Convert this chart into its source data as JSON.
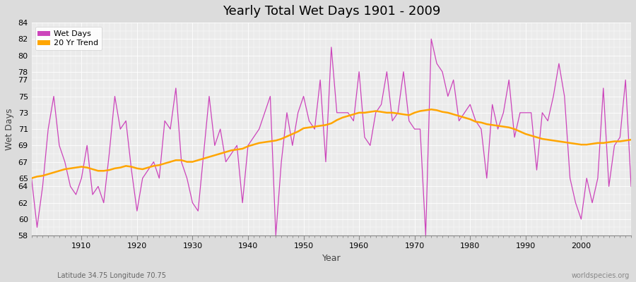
{
  "title": "Yearly Total Wet Days 1901 - 2009",
  "xlabel": "Year",
  "ylabel": "Wet Days",
  "lat_lon_label": "Latitude 34.75 Longitude 70.75",
  "watermark": "worldspecies.org",
  "ylim": [
    58,
    84
  ],
  "yticks": [
    58,
    60,
    62,
    64,
    65,
    67,
    69,
    71,
    73,
    75,
    77,
    78,
    80,
    82,
    84
  ],
  "xlim": [
    1901,
    2009
  ],
  "wet_days_color": "#CC44BB",
  "trend_color": "#FFA500",
  "bg_color": "#DCDCDC",
  "plot_bg_color": "#EBEBEB",
  "grid_color": "#FFFFFF",
  "years": [
    1901,
    1902,
    1903,
    1904,
    1905,
    1906,
    1907,
    1908,
    1909,
    1910,
    1911,
    1912,
    1913,
    1914,
    1915,
    1916,
    1917,
    1918,
    1919,
    1920,
    1921,
    1922,
    1923,
    1924,
    1925,
    1926,
    1927,
    1928,
    1929,
    1930,
    1931,
    1932,
    1933,
    1934,
    1935,
    1936,
    1937,
    1938,
    1939,
    1940,
    1941,
    1942,
    1943,
    1944,
    1945,
    1946,
    1947,
    1948,
    1949,
    1950,
    1951,
    1952,
    1953,
    1954,
    1955,
    1956,
    1957,
    1958,
    1959,
    1960,
    1961,
    1962,
    1963,
    1964,
    1965,
    1966,
    1967,
    1968,
    1969,
    1970,
    1971,
    1972,
    1973,
    1974,
    1975,
    1976,
    1977,
    1978,
    1979,
    1980,
    1981,
    1982,
    1983,
    1984,
    1985,
    1986,
    1987,
    1988,
    1989,
    1990,
    1991,
    1992,
    1993,
    1994,
    1995,
    1996,
    1997,
    1998,
    1999,
    2000,
    2001,
    2002,
    2003,
    2004,
    2005,
    2006,
    2007,
    2008,
    2009
  ],
  "wet_days": [
    65,
    59,
    64,
    71,
    75,
    69,
    67,
    64,
    63,
    65,
    69,
    63,
    64,
    62,
    68,
    75,
    71,
    72,
    66,
    61,
    65,
    66,
    67,
    65,
    72,
    71,
    76,
    67,
    65,
    62,
    61,
    68,
    75,
    69,
    71,
    67,
    68,
    69,
    62,
    69,
    70,
    71,
    73,
    75,
    58,
    67,
    73,
    69,
    73,
    75,
    72,
    71,
    77,
    67,
    81,
    73,
    73,
    73,
    72,
    78,
    70,
    69,
    73,
    74,
    78,
    72,
    73,
    78,
    72,
    71,
    71,
    58,
    82,
    79,
    78,
    75,
    77,
    72,
    73,
    74,
    72,
    71,
    65,
    74,
    71,
    73,
    77,
    70,
    73,
    73,
    73,
    66,
    73,
    72,
    75,
    79,
    75,
    65,
    62,
    60,
    65,
    62,
    65,
    76,
    64,
    69,
    70,
    77,
    64
  ],
  "trend": [
    65.0,
    65.2,
    65.3,
    65.5,
    65.7,
    65.9,
    66.1,
    66.2,
    66.3,
    66.4,
    66.3,
    66.1,
    65.9,
    65.9,
    66.0,
    66.2,
    66.3,
    66.5,
    66.4,
    66.2,
    66.1,
    66.3,
    66.5,
    66.6,
    66.8,
    67.0,
    67.2,
    67.2,
    67.0,
    67.0,
    67.2,
    67.4,
    67.6,
    67.8,
    68.0,
    68.2,
    68.4,
    68.5,
    68.6,
    68.9,
    69.1,
    69.3,
    69.4,
    69.5,
    69.6,
    69.8,
    70.1,
    70.4,
    70.7,
    71.1,
    71.2,
    71.3,
    71.4,
    71.5,
    71.7,
    72.1,
    72.4,
    72.6,
    72.8,
    73.0,
    73.0,
    73.1,
    73.2,
    73.1,
    73.0,
    73.0,
    72.9,
    72.8,
    72.7,
    73.0,
    73.2,
    73.3,
    73.4,
    73.3,
    73.1,
    73.0,
    72.8,
    72.6,
    72.4,
    72.2,
    71.9,
    71.8,
    71.6,
    71.5,
    71.4,
    71.3,
    71.2,
    71.0,
    70.7,
    70.4,
    70.2,
    70.0,
    69.8,
    69.7,
    69.6,
    69.5,
    69.4,
    69.3,
    69.2,
    69.1,
    69.1,
    69.2,
    69.3,
    69.3,
    69.4,
    69.5,
    69.5,
    69.6,
    69.7
  ]
}
